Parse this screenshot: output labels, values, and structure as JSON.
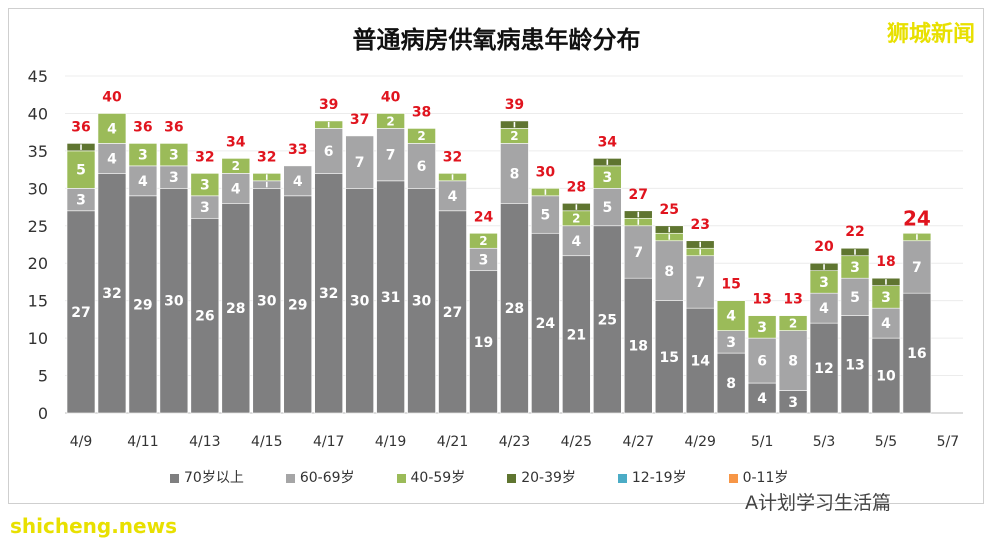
{
  "chart_data": {
    "type": "bar",
    "stacked": true,
    "title": "普通病房供氧病患年龄分布",
    "categories": [
      "4/9",
      "4/10",
      "4/11",
      "4/12",
      "4/13",
      "4/14",
      "4/15",
      "4/16",
      "4/17",
      "4/18",
      "4/19",
      "4/20",
      "4/21",
      "4/22",
      "4/23",
      "4/24",
      "4/25",
      "4/26",
      "4/27",
      "4/28",
      "4/29",
      "4/30",
      "5/1",
      "5/2",
      "5/3",
      "5/4",
      "5/5",
      "5/6"
    ],
    "x_tick_labels": [
      "4/9",
      "4/11",
      "4/13",
      "4/15",
      "4/17",
      "4/19",
      "4/21",
      "4/23",
      "4/25",
      "4/27",
      "4/29",
      "5/1",
      "5/3",
      "5/5",
      "5/7"
    ],
    "ylim": [
      0,
      45
    ],
    "y_ticks": [
      0,
      5,
      10,
      15,
      20,
      25,
      30,
      35,
      40,
      45
    ],
    "grid": true,
    "legend_position": "bottom",
    "series": [
      {
        "name": "70岁以上",
        "color": "#7f7f80",
        "values": [
          27,
          32,
          29,
          30,
          26,
          28,
          30,
          29,
          32,
          30,
          31,
          30,
          27,
          19,
          28,
          24,
          21,
          25,
          18,
          15,
          14,
          8,
          4,
          3,
          12,
          13,
          10,
          16
        ]
      },
      {
        "name": "60-69岁",
        "color": "#a5a5a6",
        "values": [
          3,
          4,
          4,
          3,
          3,
          4,
          1,
          4,
          6,
          7,
          7,
          6,
          4,
          3,
          8,
          5,
          4,
          5,
          7,
          8,
          7,
          3,
          6,
          8,
          4,
          5,
          4,
          7
        ]
      },
      {
        "name": "40-59岁",
        "color": "#9bbb59",
        "values": [
          5,
          4,
          3,
          3,
          3,
          2,
          1,
          0,
          1,
          0,
          2,
          2,
          1,
          2,
          2,
          1,
          2,
          3,
          1,
          1,
          1,
          4,
          3,
          2,
          3,
          3,
          3,
          1
        ]
      },
      {
        "name": "20-39岁",
        "color": "#5f7530",
        "values": [
          1,
          0,
          0,
          0,
          0,
          0,
          0,
          0,
          0,
          0,
          0,
          0,
          0,
          0,
          1,
          0,
          1,
          1,
          1,
          1,
          1,
          0,
          0,
          0,
          1,
          1,
          1,
          0
        ]
      },
      {
        "name": "12-19岁",
        "color": "#4bacc6",
        "values": [
          0,
          0,
          0,
          0,
          0,
          0,
          0,
          0,
          0,
          0,
          0,
          0,
          0,
          0,
          0,
          0,
          0,
          0,
          0,
          0,
          0,
          0,
          0,
          0,
          0,
          0,
          0,
          0
        ]
      },
      {
        "name": "0-11岁",
        "color": "#f79646",
        "values": [
          0,
          0,
          0,
          0,
          0,
          0,
          0,
          0,
          0,
          0,
          0,
          0,
          0,
          0,
          0,
          0,
          0,
          0,
          0,
          0,
          0,
          0,
          0,
          0,
          0,
          0,
          0,
          0
        ]
      }
    ],
    "totals": [
      36,
      40,
      36,
      36,
      32,
      34,
      32,
      33,
      39,
      37,
      40,
      38,
      32,
      24,
      39,
      30,
      28,
      34,
      27,
      25,
      23,
      15,
      13,
      13,
      20,
      22,
      18,
      24
    ],
    "total_color": "#e0141e"
  },
  "logo": "狮城新闻",
  "watermark_site": "shicheng.news",
  "watermark_account": "A计划学习生活篇"
}
